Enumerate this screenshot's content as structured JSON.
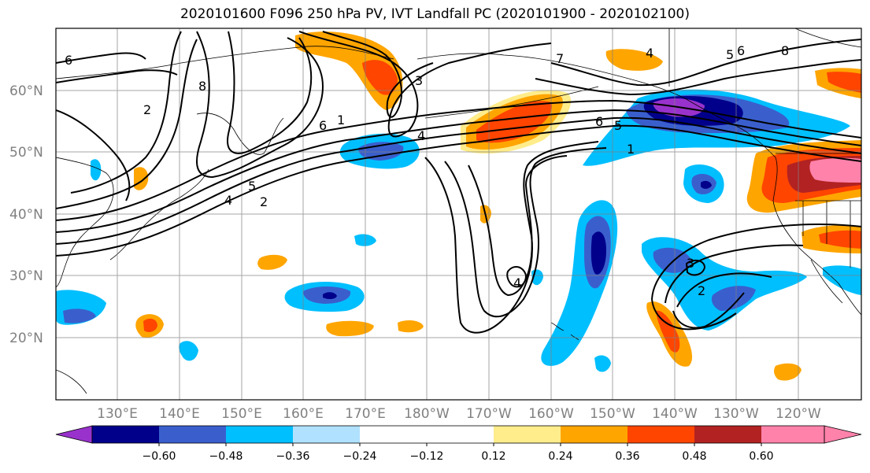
{
  "title": "2020101600 F096 250 hPa PV, IVT Landfall PC (2020101900 - 2020102100)",
  "map": {
    "projection": "PlateCarree",
    "lon_range": [
      120,
      250
    ],
    "lat_range": [
      10,
      70
    ],
    "lat_labels": [
      "60°N",
      "50°N",
      "40°N",
      "30°N",
      "20°N"
    ],
    "lon_labels": [
      "130°E",
      "140°E",
      "150°E",
      "160°E",
      "170°E",
      "180°W",
      "170°W",
      "160°W",
      "150°W",
      "140°W",
      "130°W",
      "120°W"
    ],
    "gridlines": true
  },
  "contour_labels": [
    "6",
    "2",
    "8",
    "6",
    "1",
    "4",
    "5",
    "2",
    "3",
    "4",
    "7",
    "4",
    "5",
    "6",
    "8",
    "6",
    "5",
    "1",
    "3",
    "2",
    "4"
  ],
  "colorbar": {
    "tick_labels": [
      "−0.60",
      "−0.48",
      "−0.36",
      "−0.24",
      "−0.12",
      "0.12",
      "0.24",
      "0.36",
      "0.48",
      "0.60"
    ],
    "colors": [
      "#9932cc",
      "#00008b",
      "#3a5fcd",
      "#00bfff",
      "#b0e2ff",
      "#ffffff",
      "#ffec8b",
      "#ffa500",
      "#ff4500",
      "#b22222",
      "#ff82ab"
    ],
    "extend": "both"
  }
}
